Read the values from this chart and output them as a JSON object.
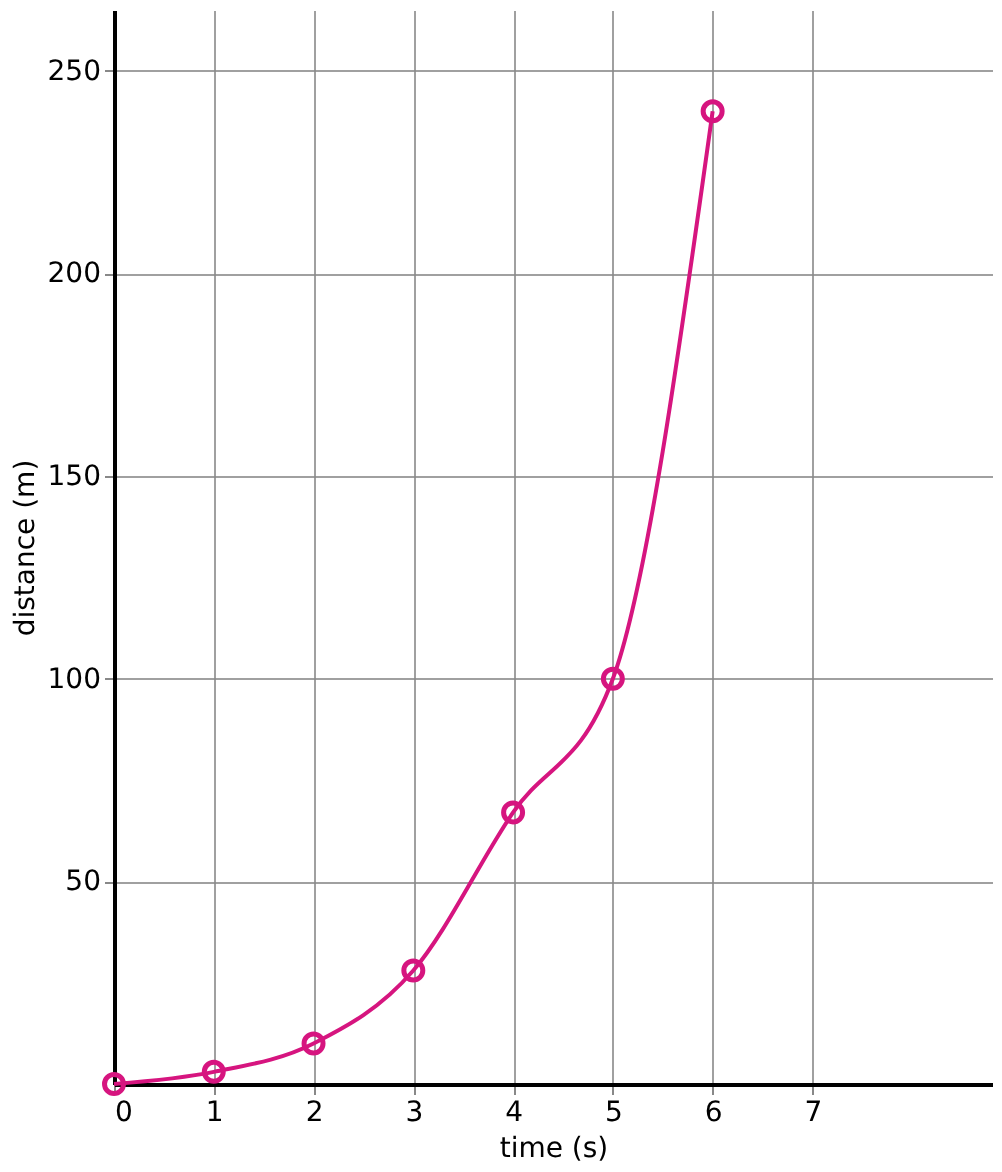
{
  "chart_data": {
    "type": "line",
    "xlabel": "time (s)",
    "ylabel": "distance (m)",
    "x": [
      0,
      1,
      2,
      3,
      4,
      5,
      6
    ],
    "series": [
      {
        "color": "#d6157f",
        "values": [
          0,
          3,
          10,
          28,
          67,
          100,
          240
        ]
      }
    ],
    "xlim": [
      0,
      8.8
    ],
    "ylim": [
      0,
      265
    ],
    "xticks": [
      0,
      1,
      2,
      3,
      4,
      5,
      6,
      7
    ],
    "yticks": [
      50,
      100,
      150,
      200,
      250
    ],
    "grid": true,
    "marker": "circle",
    "line_style": "solid"
  }
}
